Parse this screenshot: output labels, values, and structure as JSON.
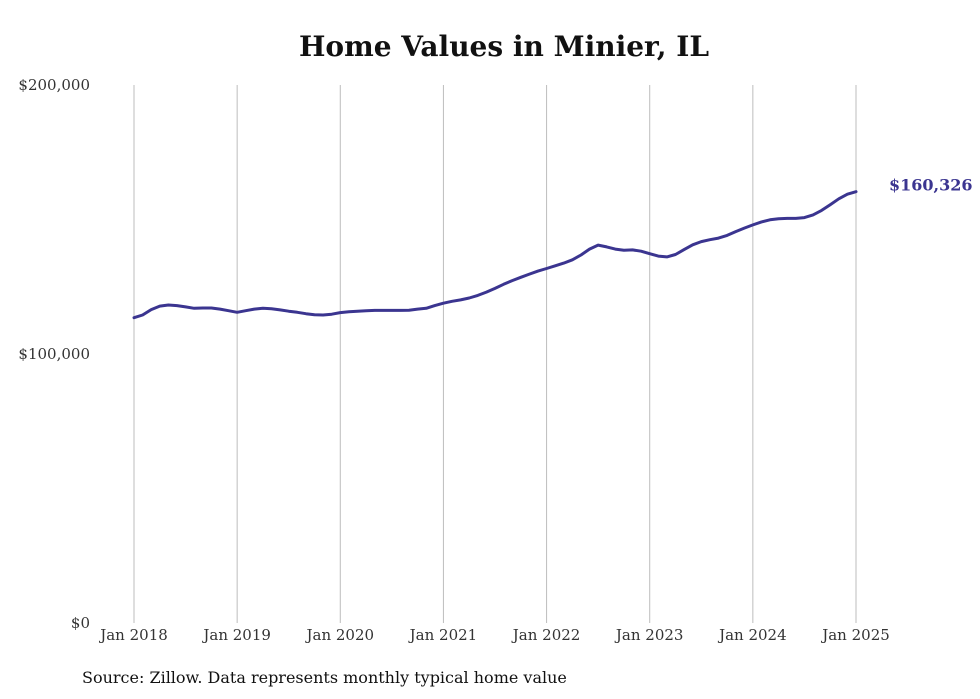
{
  "chart_data": {
    "type": "line",
    "title": "Home Values in Minier, IL",
    "xlabel": "",
    "ylabel": "",
    "y_range": [
      0,
      200000
    ],
    "y_ticks": [
      {
        "value": 0,
        "label": "$0"
      },
      {
        "value": 100000,
        "label": "$100,000"
      },
      {
        "value": 200000,
        "label": "$200,000"
      }
    ],
    "x_ticks": [
      {
        "value": "2018-01",
        "label": "Jan 2018"
      },
      {
        "value": "2019-01",
        "label": "Jan 2019"
      },
      {
        "value": "2020-01",
        "label": "Jan 2020"
      },
      {
        "value": "2021-01",
        "label": "Jan 2021"
      },
      {
        "value": "2022-01",
        "label": "Jan 2022"
      },
      {
        "value": "2023-01",
        "label": "Jan 2023"
      },
      {
        "value": "2024-01",
        "label": "Jan 2024"
      },
      {
        "value": "2025-01",
        "label": "Jan 2025"
      }
    ],
    "grid": {
      "vertical": true,
      "horizontal": false
    },
    "line_color": "#3b3590",
    "series": [
      {
        "points": [
          [
            "2018-01",
            113500
          ],
          [
            "2018-02",
            114500
          ],
          [
            "2018-03",
            116500
          ],
          [
            "2018-04",
            117800
          ],
          [
            "2018-05",
            118200
          ],
          [
            "2018-06",
            118000
          ],
          [
            "2018-07",
            117500
          ],
          [
            "2018-08",
            117000
          ],
          [
            "2018-09",
            117100
          ],
          [
            "2018-10",
            117100
          ],
          [
            "2018-11",
            116700
          ],
          [
            "2018-12",
            116100
          ],
          [
            "2019-01",
            115500
          ],
          [
            "2019-02",
            116100
          ],
          [
            "2019-03",
            116700
          ],
          [
            "2019-04",
            117000
          ],
          [
            "2019-05",
            116800
          ],
          [
            "2019-06",
            116400
          ],
          [
            "2019-07",
            115900
          ],
          [
            "2019-08",
            115500
          ],
          [
            "2019-09",
            115000
          ],
          [
            "2019-10",
            114600
          ],
          [
            "2019-11",
            114500
          ],
          [
            "2019-12",
            114800
          ],
          [
            "2020-01",
            115400
          ],
          [
            "2020-02",
            115700
          ],
          [
            "2020-03",
            115900
          ],
          [
            "2020-04",
            116100
          ],
          [
            "2020-05",
            116200
          ],
          [
            "2020-06",
            116200
          ],
          [
            "2020-07",
            116200
          ],
          [
            "2020-08",
            116200
          ],
          [
            "2020-09",
            116300
          ],
          [
            "2020-10",
            116700
          ],
          [
            "2020-11",
            117000
          ],
          [
            "2020-12",
            118000
          ],
          [
            "2021-01",
            118900
          ],
          [
            "2021-02",
            119600
          ],
          [
            "2021-03",
            120100
          ],
          [
            "2021-04",
            120800
          ],
          [
            "2021-05",
            121800
          ],
          [
            "2021-06",
            123000
          ],
          [
            "2021-07",
            124400
          ],
          [
            "2021-08",
            125900
          ],
          [
            "2021-09",
            127300
          ],
          [
            "2021-10",
            128500
          ],
          [
            "2021-11",
            129700
          ],
          [
            "2021-12",
            130800
          ],
          [
            "2022-01",
            131800
          ],
          [
            "2022-02",
            132800
          ],
          [
            "2022-03",
            133800
          ],
          [
            "2022-04",
            135000
          ],
          [
            "2022-05",
            136800
          ],
          [
            "2022-06",
            139000
          ],
          [
            "2022-07",
            140500
          ],
          [
            "2022-08",
            139800
          ],
          [
            "2022-09",
            139000
          ],
          [
            "2022-10",
            138600
          ],
          [
            "2022-11",
            138700
          ],
          [
            "2022-12",
            138200
          ],
          [
            "2023-01",
            137300
          ],
          [
            "2023-02",
            136400
          ],
          [
            "2023-03",
            136100
          ],
          [
            "2023-04",
            137000
          ],
          [
            "2023-05",
            138800
          ],
          [
            "2023-06",
            140600
          ],
          [
            "2023-07",
            141800
          ],
          [
            "2023-08",
            142500
          ],
          [
            "2023-09",
            143100
          ],
          [
            "2023-10",
            144100
          ],
          [
            "2023-11",
            145500
          ],
          [
            "2023-12",
            146800
          ],
          [
            "2024-01",
            148000
          ],
          [
            "2024-02",
            149100
          ],
          [
            "2024-03",
            149900
          ],
          [
            "2024-04",
            150300
          ],
          [
            "2024-05",
            150400
          ],
          [
            "2024-06",
            150400
          ],
          [
            "2024-07",
            150700
          ],
          [
            "2024-08",
            151700
          ],
          [
            "2024-09",
            153400
          ],
          [
            "2024-10",
            155500
          ],
          [
            "2024-11",
            157700
          ],
          [
            "2024-12",
            159400
          ],
          [
            "2025-01",
            160326
          ]
        ]
      }
    ],
    "end_label": "$160,326"
  },
  "source_note": "Source: Zillow. Data represents monthly typical home value"
}
